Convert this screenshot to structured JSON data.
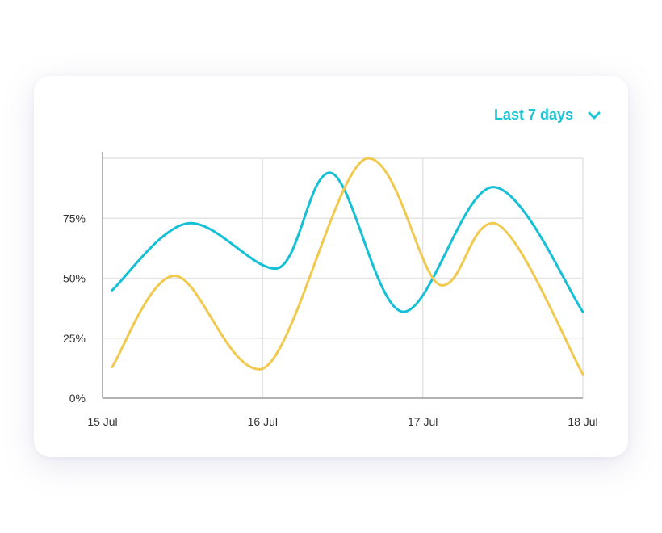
{
  "range_selector": {
    "label": "Last 7 days",
    "icon": "chevron-down-icon"
  },
  "colors": {
    "accent": "#1cc3d4",
    "series_1": "#15c0d6",
    "series_2": "#f0c94e",
    "grid": "#e4e4e4",
    "axis": "#9a9a9a"
  },
  "chart_data": {
    "type": "line",
    "x": [
      "15 Jul",
      "16 Jul",
      "17 Jul",
      "18 Jul"
    ],
    "yticks": [
      "0%",
      "25%",
      "50%",
      "75%"
    ],
    "ylim": [
      0,
      100
    ],
    "grid": true,
    "smooth": true,
    "series": [
      {
        "color": "#15c0d6",
        "points": [
          [
            0.06,
            45
          ],
          [
            0.55,
            73
          ],
          [
            1.08,
            54
          ],
          [
            1.42,
            94
          ],
          [
            1.88,
            36
          ],
          [
            2.44,
            88
          ],
          [
            3.0,
            36
          ]
        ]
      },
      {
        "color": "#f0c94e",
        "points": [
          [
            0.06,
            13
          ],
          [
            0.45,
            51
          ],
          [
            0.98,
            12
          ],
          [
            1.66,
            100
          ],
          [
            2.12,
            47
          ],
          [
            2.44,
            73
          ],
          [
            3.0,
            10
          ]
        ]
      }
    ]
  }
}
